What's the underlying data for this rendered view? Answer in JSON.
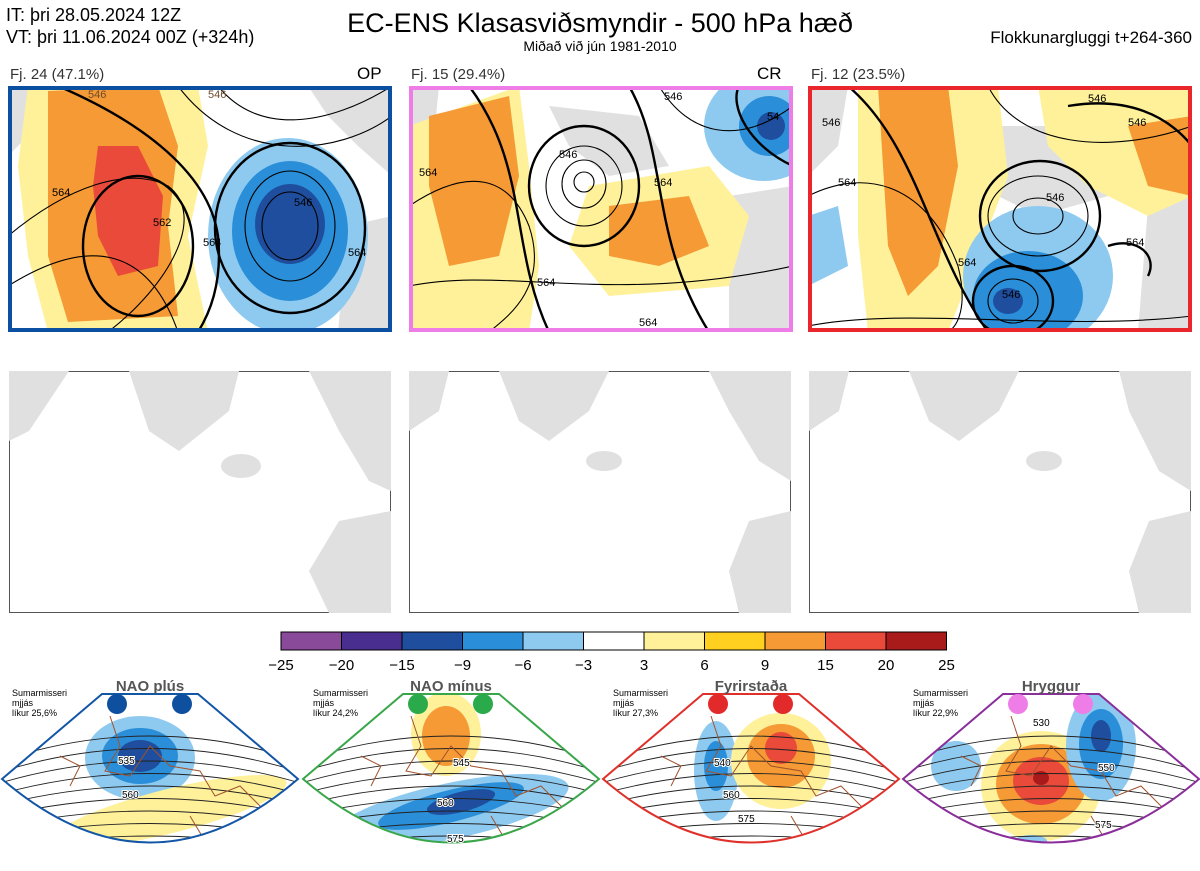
{
  "header": {
    "it_line": "IT: þri 28.05.2024 12Z",
    "vt_line": "VT: þri 11.06.2024 00Z  (+324h)",
    "title": "EC-ENS Klasasviðsmyndir - 500 hPa hæð",
    "subtitle": "Miðað við jún 1981-2010",
    "window": "Flokkunargluggi t+264-360"
  },
  "clusters": [
    {
      "label": "Fj. 24 (47.1%)",
      "tag": "OP",
      "frame_color": "#0a4fa0",
      "contour_labels": [
        "546",
        "546",
        "562",
        "564",
        "546",
        "564",
        "564"
      ]
    },
    {
      "label": "Fj. 15 (29.4%)",
      "tag": "CR",
      "frame_color": "#ee7de8",
      "contour_labels": [
        "546",
        "546",
        "564",
        "564",
        "564",
        "564",
        "54"
      ]
    },
    {
      "label": "Fj. 12 (23.5%)",
      "tag": "",
      "frame_color": "#e8262b",
      "contour_labels": [
        "546",
        "546",
        "564",
        "546",
        "564",
        "546",
        "564",
        "546"
      ]
    }
  ],
  "colorbar": {
    "ticks": [
      "−25",
      "−20",
      "−15",
      "−9",
      "−6",
      "−3",
      "3",
      "6",
      "9",
      "15",
      "20",
      "25"
    ],
    "colors": [
      "#8a4a9a",
      "#4a2e8f",
      "#1f4e9e",
      "#2a8fd8",
      "#8ecaf0",
      "#ffffff",
      "#fff19a",
      "#ffd020",
      "#f59a34",
      "#ea4a3a",
      "#a91b1b"
    ]
  },
  "regimes": [
    {
      "name": "NAO plús",
      "season": "Sumarmisseri",
      "stat": "mjjás",
      "prob": "líkur 25,6%",
      "frame": "#1356a5",
      "dot": "#0f4f9f",
      "labels": [
        "535",
        "560"
      ]
    },
    {
      "name": "NAO mínus",
      "season": "Sumarmisseri",
      "stat": "mjjás",
      "prob": "líkur 24,2%",
      "frame": "#3aa64a",
      "dot": "#2aaa4a",
      "labels": [
        "545",
        "560",
        "575"
      ]
    },
    {
      "name": "Fyrirstaða",
      "season": "Sumarmisseri",
      "stat": "mjjás",
      "prob": "líkur 27,3%",
      "frame": "#e0302a",
      "dot": "#e32a2a",
      "labels": [
        "540",
        "560",
        "575"
      ]
    },
    {
      "name": "Hryggur",
      "season": "Sumarmisseri",
      "stat": "mjjás",
      "prob": "líkur 22,9%",
      "frame": "#8a2e9a",
      "dot": "#ee7de8",
      "labels": [
        "530",
        "550",
        "575"
      ]
    }
  ]
}
